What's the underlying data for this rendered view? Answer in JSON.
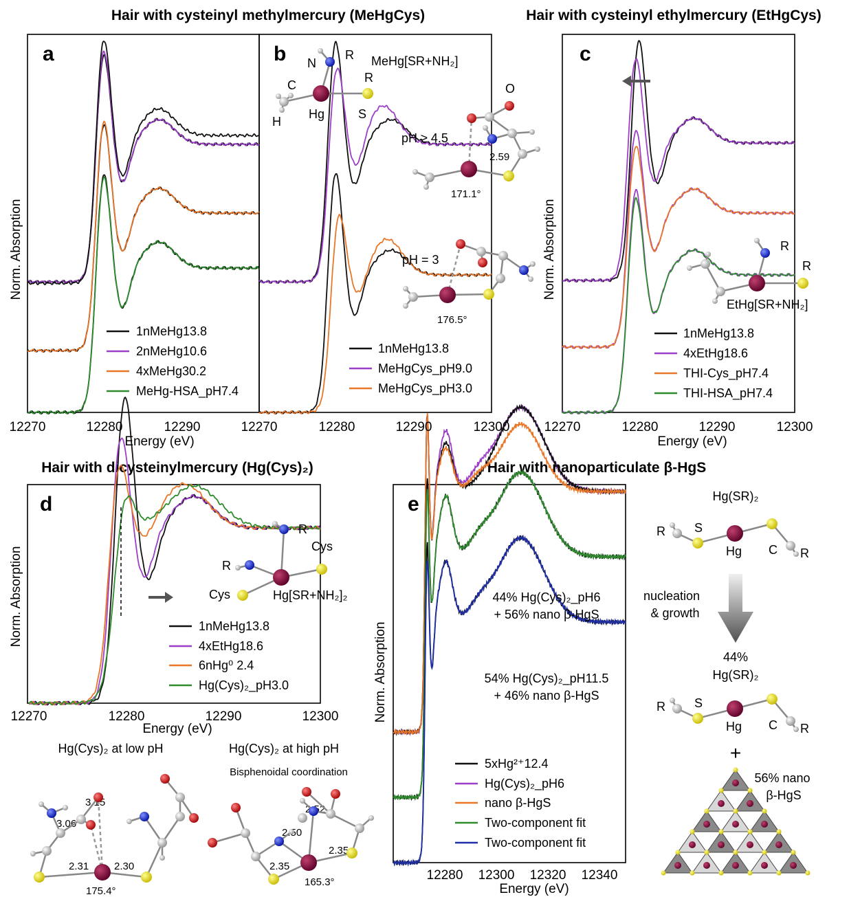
{
  "section_titles": {
    "meHgCys": "Hair with cysteinyl methylmercury (MeHgCys)",
    "etHgCys": "Hair with cysteinyl ethylmercury (EtHgCys)",
    "hgCys2": "Hair with dicysteinylmercury (Hg(Cys)₂)",
    "nanoHgS": "Hair with nanoparticulate β-HgS"
  },
  "colors": {
    "black": "#111111",
    "purple": "#9b3fc8",
    "orange": "#e8772a",
    "green": "#2e8b2e",
    "blue": "#1f2fa8",
    "mercury": "#7a0a3c",
    "sulfur": "#e8e010",
    "nitrogen": "#1020d0",
    "oxygen": "#d01010",
    "carbon": "#c8c8c8"
  },
  "chart_data": [
    {
      "panel": "a",
      "type": "line",
      "xlabel": "Energy (eV)",
      "ylabel": "Norm. Absorption",
      "xlim": [
        12270,
        12300
      ],
      "x_ticks": [
        "12270",
        "12280",
        "12290",
        "12300"
      ],
      "series": [
        {
          "name": "1nMeHg13.8",
          "color": "black"
        },
        {
          "name": "2nMeHg10.6",
          "color": "purple"
        },
        {
          "name": "4xMeHg30.2",
          "color": "orange"
        },
        {
          "name": "MeHg-HSA_pH7.4",
          "color": "green"
        }
      ]
    },
    {
      "panel": "b",
      "type": "line",
      "xlabel": "Energy (eV)",
      "xlim": [
        12270,
        12300
      ],
      "x_ticks": [
        "12270",
        "12280",
        "12290",
        "12300"
      ],
      "series": [
        {
          "name": "1nMeHg13.8",
          "color": "black"
        },
        {
          "name": "MeHgCys_pH9.0",
          "color": "purple"
        },
        {
          "name": "MeHgCys_pH3.0",
          "color": "orange"
        }
      ],
      "annotations": {
        "complex": "MeHg[SR+NH₂]",
        "ph_high": "pH ≥ 4.5",
        "ph_low": "pH = 3",
        "bond": "2.59",
        "angle_high": "171.1°",
        "angle_low": "176.5°",
        "atoms": {
          "N": "N",
          "R": "R",
          "C": "C",
          "H": "H",
          "Hg": "Hg",
          "S": "S",
          "O": "O"
        }
      }
    },
    {
      "panel": "c",
      "type": "line",
      "xlabel": "Energy (eV)",
      "ylabel": "Norm. Absorption",
      "xlim": [
        12270,
        12300
      ],
      "x_ticks": [
        "12270",
        "12280",
        "12290",
        "12300"
      ],
      "series": [
        {
          "name": "1nMeHg13.8",
          "color": "black"
        },
        {
          "name": "4xEtHg18.6",
          "color": "purple"
        },
        {
          "name": "THI-Cys_pH7.4",
          "color": "orange"
        },
        {
          "name": "THI-HSA_pH7.4",
          "color": "green"
        }
      ],
      "annotations": {
        "complex": "EtHg[SR+NH₂]",
        "R": "R"
      }
    },
    {
      "panel": "d",
      "type": "line",
      "xlabel": "Energy (eV)",
      "ylabel": "Norm. Absorption",
      "xlim": [
        12270,
        12300
      ],
      "x_ticks": [
        "12270",
        "12280",
        "12290",
        "12300"
      ],
      "series": [
        {
          "name": "1nMeHg13.8",
          "color": "black"
        },
        {
          "name": "4xEtHg18.6",
          "color": "purple"
        },
        {
          "name": "6nHg⁰ 2.4",
          "color": "orange"
        },
        {
          "name": "Hg(Cys)₂_pH3.0",
          "color": "green"
        }
      ],
      "annotations": {
        "complex": "Hg[SR+NH₂]₂",
        "cys": "Cys",
        "R": "R"
      }
    },
    {
      "panel": "e",
      "type": "line",
      "xlabel": "Energy (eV)",
      "ylabel": "Norm. Absorption",
      "xlim": [
        12265,
        12355
      ],
      "x_ticks": [
        "12280",
        "12300",
        "12320",
        "12340"
      ],
      "series": [
        {
          "name": "5xHg²⁺12.4",
          "color": "black"
        },
        {
          "name": "Hg(Cys)₂_pH6",
          "color": "purple"
        },
        {
          "name": "nano β-HgS",
          "color": "orange"
        },
        {
          "name": "Two-component fit",
          "color": "green"
        },
        {
          "name": "Two-component fit",
          "color": "blue"
        }
      ],
      "annotations": {
        "fit1_line1": "44% Hg(Cys)₂_pH6",
        "fit1_line2": "+ 56% nano β-HgS",
        "fit2_line1": "54% Hg(Cys)₂_pH11.5",
        "fit2_line2": "+ 46% nano β-HgS"
      }
    }
  ],
  "structures_d": {
    "low_title": "Hg(Cys)₂ at low pH",
    "high_title": "Hg(Cys)₂ at high pH",
    "high_subtitle": "Bisphenoidal coordination",
    "low_values": [
      "3.15",
      "3.06",
      "2.31",
      "2.30",
      "175.4°"
    ],
    "high_values": [
      "2.52",
      "2.50",
      "2.35",
      "2.35",
      "165.3°"
    ]
  },
  "scheme_e": {
    "top": "Hg(SR)₂",
    "process_1": "nucleation",
    "process_2": "& growth",
    "pct": "44%",
    "bottom": "Hg(SR)₂",
    "plus": "+",
    "nano_1": "56% nano",
    "nano_2": "β-HgS",
    "atoms": {
      "R": "R",
      "S": "S",
      "Hg": "Hg",
      "C": "C"
    }
  }
}
